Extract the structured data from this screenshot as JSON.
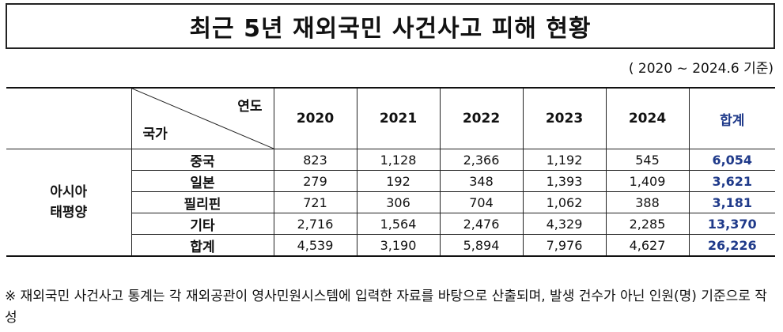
{
  "title": "최근 5년 재외국민 사건사고 피해 현황",
  "period": "( 2020 ~ 2024.6 기준)",
  "table": {
    "header_year_label": "연도",
    "header_country_label": "국가",
    "years": [
      "2020",
      "2021",
      "2022",
      "2023",
      "2024"
    ],
    "total_label": "합계",
    "region": "아시아\n태평양",
    "rows": [
      {
        "country": "중국",
        "values": [
          "823",
          "1,128",
          "2,366",
          "1,192",
          "545"
        ],
        "total": "6,054"
      },
      {
        "country": "일본",
        "values": [
          "279",
          "192",
          "348",
          "1,393",
          "1,409"
        ],
        "total": "3,621"
      },
      {
        "country": "필리핀",
        "values": [
          "721",
          "306",
          "704",
          "1,062",
          "388"
        ],
        "total": "3,181"
      },
      {
        "country": "기타",
        "values": [
          "2,716",
          "1,564",
          "2,476",
          "4,329",
          "2,285"
        ],
        "total": "13,370"
      },
      {
        "country": "합계",
        "values": [
          "4,539",
          "3,190",
          "5,894",
          "7,976",
          "4,627"
        ],
        "total": "26,226"
      }
    ]
  },
  "note": "※ 재외국민 사건사고 통계는 각 재외공관이 영사민원시스템에 입력한 자료를 바탕으로 산출되며, 발생 건수가 아닌 인원(명) 기준으로 작성"
}
